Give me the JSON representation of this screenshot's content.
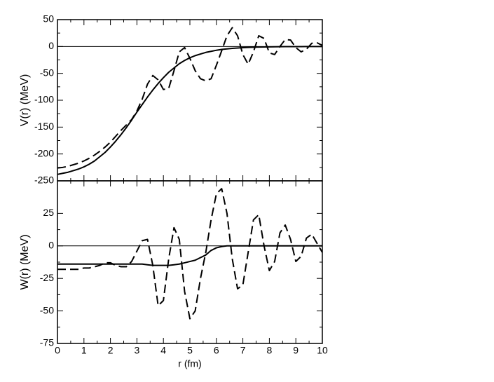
{
  "chart_data": [
    {
      "type": "line",
      "ylabel": "V(r) (MeV)",
      "xlim": [
        0,
        10
      ],
      "xticks": [
        0,
        1,
        2,
        3,
        4,
        5,
        6,
        7,
        8,
        9,
        10
      ],
      "xtick_labels": false,
      "ylim": [
        -250,
        50
      ],
      "yticks": [
        -250,
        -200,
        -150,
        -100,
        -50,
        0,
        50
      ],
      "zero_line": true,
      "x": [
        0,
        0.2,
        0.4,
        0.6,
        0.8,
        1,
        1.2,
        1.4,
        1.6,
        1.8,
        2,
        2.2,
        2.4,
        2.6,
        2.8,
        3,
        3.2,
        3.4,
        3.6,
        3.8,
        4,
        4.2,
        4.4,
        4.6,
        4.8,
        5,
        5.2,
        5.4,
        5.6,
        5.8,
        6,
        6.2,
        6.4,
        6.6,
        6.8,
        7,
        7.2,
        7.4,
        7.6,
        7.8,
        8,
        8.2,
        8.4,
        8.6,
        8.8,
        9,
        9.2,
        9.4,
        9.6,
        9.8,
        10
      ],
      "series": [
        {
          "color": "#000000",
          "dash": false,
          "values": [
            -238,
            -236,
            -234,
            -231,
            -228,
            -224,
            -219,
            -213,
            -205,
            -197,
            -187,
            -176,
            -164,
            -151,
            -137,
            -122,
            -108,
            -94,
            -81,
            -69,
            -58,
            -48,
            -40,
            -32,
            -26,
            -21,
            -17,
            -14,
            -11,
            -9,
            -7,
            -5.5,
            -4.4,
            -3.5,
            -2.8,
            -2.2,
            -1.7,
            -1.4,
            -1.1,
            -0.9,
            -0.7,
            -0.5,
            -0.4,
            -0.3,
            -0.3,
            -0.2,
            -0.2,
            -0.1,
            -0.1,
            -0.1,
            -0.1
          ]
        },
        {
          "color": "#000000",
          "dash": true,
          "values": [
            -226,
            -225,
            -223,
            -220,
            -217,
            -213,
            -208,
            -202,
            -195,
            -187,
            -178,
            -167,
            -156,
            -146,
            -136,
            -120,
            -98,
            -70,
            -54,
            -62,
            -80,
            -78,
            -45,
            -10,
            -2,
            -22,
            -45,
            -60,
            -64,
            -60,
            -35,
            -8,
            20,
            35,
            20,
            -15,
            -33,
            -10,
            20,
            15,
            -12,
            -15,
            0,
            13,
            12,
            -2,
            -10,
            -5,
            6,
            7,
            2
          ]
        }
      ]
    },
    {
      "type": "line",
      "xlabel": "r (fm)",
      "ylabel": "W(r) (MeV)",
      "xlim": [
        0,
        10
      ],
      "xticks": [
        0,
        1,
        2,
        3,
        4,
        5,
        6,
        7,
        8,
        9,
        10
      ],
      "xtick_labels": true,
      "ylim": [
        -75,
        50
      ],
      "yticks": [
        -75,
        -50,
        -25,
        0,
        25
      ],
      "zero_line": true,
      "x": [
        0,
        0.2,
        0.4,
        0.6,
        0.8,
        1,
        1.2,
        1.4,
        1.6,
        1.8,
        2,
        2.2,
        2.4,
        2.6,
        2.8,
        3,
        3.2,
        3.4,
        3.6,
        3.8,
        4,
        4.2,
        4.4,
        4.6,
        4.8,
        5,
        5.2,
        5.4,
        5.6,
        5.8,
        6,
        6.2,
        6.4,
        6.6,
        6.8,
        7,
        7.2,
        7.4,
        7.6,
        7.8,
        8,
        8.2,
        8.4,
        8.6,
        8.8,
        9,
        9.2,
        9.4,
        9.6,
        9.8,
        10
      ],
      "series": [
        {
          "color": "#000000",
          "dash": false,
          "values": [
            -14,
            -14,
            -14,
            -14,
            -14,
            -14,
            -14,
            -14,
            -14,
            -14,
            -14,
            -14,
            -14,
            -14,
            -14,
            -14,
            -14,
            -14.5,
            -15,
            -15,
            -15,
            -15,
            -14.5,
            -14,
            -13,
            -12,
            -11,
            -9,
            -7,
            -3.5,
            -1.5,
            -0.5,
            0,
            0,
            0,
            0,
            0,
            0,
            0,
            0,
            0,
            0,
            0,
            0,
            0,
            0,
            0,
            0,
            0,
            0,
            0
          ]
        },
        {
          "color": "#000000",
          "dash": true,
          "values": [
            -18,
            -18,
            -18,
            -18,
            -18,
            -17,
            -17,
            -16,
            -15,
            -13,
            -13,
            -15,
            -16,
            -16,
            -12,
            -4,
            4,
            5,
            -15,
            -46,
            -42,
            -10,
            14,
            5,
            -35,
            -56,
            -50,
            -25,
            -5,
            20,
            40,
            44,
            25,
            -10,
            -33,
            -30,
            -5,
            20,
            24,
            0,
            -19,
            -12,
            10,
            16,
            5,
            -12,
            -8,
            6,
            9,
            2,
            -5
          ]
        }
      ]
    }
  ]
}
